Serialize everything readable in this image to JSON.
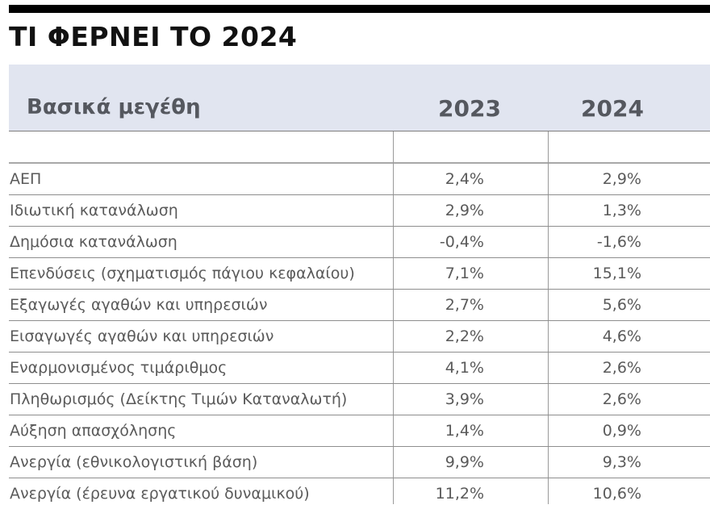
{
  "title": "ΤΙ ΦΕΡΝΕΙ ΤΟ 2024",
  "table": {
    "headers": [
      "Βασικά μεγέθη",
      "2023",
      "2024"
    ],
    "rows": [
      {
        "label": "ΑΕΠ",
        "y2023": "2,4%",
        "y2024": "2,9%"
      },
      {
        "label": "Ιδιωτική κατανάλωση",
        "y2023": "2,9%",
        "y2024": "1,3%"
      },
      {
        "label": "Δημόσια κατανάλωση",
        "y2023": "-0,4%",
        "y2024": "-1,6%"
      },
      {
        "label": "Επενδύσεις (σχηματισμός πάγιου κεφαλαίου)",
        "y2023": "7,1%",
        "y2024": "15,1%"
      },
      {
        "label": "Εξαγωγές αγαθών και υπηρεσιών",
        "y2023": "2,7%",
        "y2024": "5,6%"
      },
      {
        "label": "Εισαγωγές αγαθών και υπηρεσιών",
        "y2023": "2,2%",
        "y2024": "4,6%"
      },
      {
        "label": "Εναρμονισμένος τιμάριθμος",
        "y2023": "4,1%",
        "y2024": "2,6%"
      },
      {
        "label": "Πληθωρισμός (Δείκτης Τιμών Καταναλωτή)",
        "y2023": "3,9%",
        "y2024": "2,6%"
      },
      {
        "label": "Αύξηση απασχόλησης",
        "y2023": "1,4%",
        "y2024": "0,9%"
      },
      {
        "label": "Ανεργία (εθνικολογιστική βάση)",
        "y2023": "9,9%",
        "y2024": "9,3%"
      },
      {
        "label": "Ανεργία (έρευνα εργατικού δυναμικού)",
        "y2023": "11,2%",
        "y2024": "10,6%"
      }
    ]
  },
  "colors": {
    "header_bg": "#e1e5f0",
    "header_text": "#55585f",
    "body_text": "#5a5a5a",
    "title_bar": "#000000"
  }
}
